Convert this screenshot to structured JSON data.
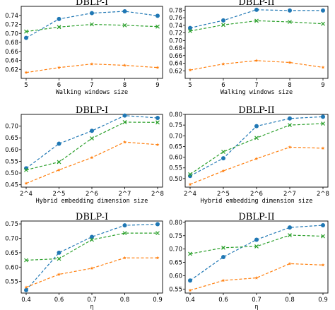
{
  "colors": {
    "blue": "#1f77b4",
    "orange": "#ff7f0e",
    "green": "#2ca02c"
  },
  "chart_data": [
    {
      "type": "line",
      "title": "DBLP-I",
      "xlabel": "Walking windows size",
      "ylabel": "",
      "categories": [
        "5",
        "6",
        "7",
        "8",
        "9"
      ],
      "ylim": [
        0.6,
        0.76
      ],
      "yticks": [
        "0.62",
        "0.64",
        "0.66",
        "0.68",
        "0.70",
        "0.72",
        "0.74"
      ],
      "series": [
        {
          "marker": "circle",
          "color": "#1f77b4",
          "values": [
            0.69,
            0.732,
            0.745,
            0.749,
            0.739
          ]
        },
        {
          "marker": "star",
          "color": "#ff7f0e",
          "values": [
            0.613,
            0.624,
            0.632,
            0.629,
            0.624
          ]
        },
        {
          "marker": "x",
          "color": "#2ca02c",
          "values": [
            0.704,
            0.714,
            0.72,
            0.718,
            0.715
          ]
        }
      ]
    },
    {
      "type": "line",
      "title": "DBLP-II",
      "xlabel": "Walking windows size",
      "ylabel": "",
      "categories": [
        "5",
        "6",
        "7",
        "8",
        "9"
      ],
      "ylim": [
        0.6,
        0.79
      ],
      "yticks": [
        "0.62",
        "0.64",
        "0.66",
        "0.68",
        "0.70",
        "0.72",
        "0.74",
        "0.76",
        "0.78"
      ],
      "series": [
        {
          "marker": "circle",
          "color": "#1f77b4",
          "values": [
            0.733,
            0.753,
            0.781,
            0.779,
            0.779
          ]
        },
        {
          "marker": "star",
          "color": "#ff7f0e",
          "values": [
            0.622,
            0.638,
            0.647,
            0.642,
            0.629
          ]
        },
        {
          "marker": "x",
          "color": "#2ca02c",
          "values": [
            0.725,
            0.741,
            0.752,
            0.749,
            0.744
          ]
        }
      ]
    },
    {
      "type": "line",
      "title": "DBLP-I",
      "xlabel": "Hybrid embedding dimension size",
      "ylabel": "",
      "categories": [
        "2^4",
        "2^5",
        "2^6",
        "2^7",
        "2^8"
      ],
      "ylim": [
        0.44,
        0.75
      ],
      "yticks": [
        "0.45",
        "0.50",
        "0.55",
        "0.60",
        "0.65",
        "0.70"
      ],
      "series": [
        {
          "marker": "circle",
          "color": "#1f77b4",
          "values": [
            0.52,
            0.625,
            0.68,
            0.745,
            0.735
          ]
        },
        {
          "marker": "star",
          "color": "#ff7f0e",
          "values": [
            0.456,
            0.513,
            0.566,
            0.632,
            0.621
          ]
        },
        {
          "marker": "x",
          "color": "#2ca02c",
          "values": [
            0.513,
            0.547,
            0.648,
            0.717,
            0.716
          ]
        }
      ]
    },
    {
      "type": "line",
      "title": "DBLP-II",
      "xlabel": "Hybrid embedding dimension size",
      "ylabel": "",
      "categories": [
        "2^4",
        "2^5",
        "2^6",
        "2^7",
        "2^8"
      ],
      "ylim": [
        0.46,
        0.8
      ],
      "yticks": [
        "0.50",
        "0.55",
        "0.60",
        "0.65",
        "0.70",
        "0.75",
        "0.80"
      ],
      "series": [
        {
          "marker": "circle",
          "color": "#1f77b4",
          "values": [
            0.512,
            0.595,
            0.745,
            0.781,
            0.789
          ]
        },
        {
          "marker": "star",
          "color": "#ff7f0e",
          "values": [
            0.473,
            0.536,
            0.593,
            0.647,
            0.642
          ]
        },
        {
          "marker": "x",
          "color": "#2ca02c",
          "values": [
            0.52,
            0.625,
            0.69,
            0.75,
            0.757
          ]
        }
      ]
    },
    {
      "type": "line",
      "title": "DBLP-I",
      "xlabel": "η",
      "ylabel": "",
      "categories": [
        "0.4",
        "0.6",
        "0.7",
        "0.8",
        "0.9"
      ],
      "ylim": [
        0.51,
        0.76
      ],
      "yticks": [
        "0.55",
        "0.60",
        "0.65",
        "0.70",
        "0.75"
      ],
      "series": [
        {
          "marker": "circle",
          "color": "#1f77b4",
          "values": [
            0.52,
            0.65,
            0.705,
            0.745,
            0.749
          ]
        },
        {
          "marker": "star",
          "color": "#ff7f0e",
          "values": [
            0.53,
            0.575,
            0.596,
            0.632,
            0.632
          ]
        },
        {
          "marker": "x",
          "color": "#2ca02c",
          "values": [
            0.624,
            0.629,
            0.695,
            0.718,
            0.718
          ]
        }
      ]
    },
    {
      "type": "line",
      "title": "DBLP-II",
      "xlabel": "η",
      "ylabel": "",
      "categories": [
        "0.4",
        "0.6",
        "0.7",
        "0.8",
        "0.9"
      ],
      "ylim": [
        0.535,
        0.805
      ],
      "yticks": [
        "0.55",
        "0.60",
        "0.65",
        "0.70",
        "0.75",
        "0.80"
      ],
      "series": [
        {
          "marker": "circle",
          "color": "#1f77b4",
          "values": [
            0.582,
            0.67,
            0.735,
            0.781,
            0.789
          ]
        },
        {
          "marker": "star",
          "color": "#ff7f0e",
          "values": [
            0.545,
            0.582,
            0.592,
            0.645,
            0.64
          ]
        },
        {
          "marker": "x",
          "color": "#2ca02c",
          "values": [
            0.682,
            0.705,
            0.71,
            0.752,
            0.748
          ]
        }
      ]
    }
  ]
}
